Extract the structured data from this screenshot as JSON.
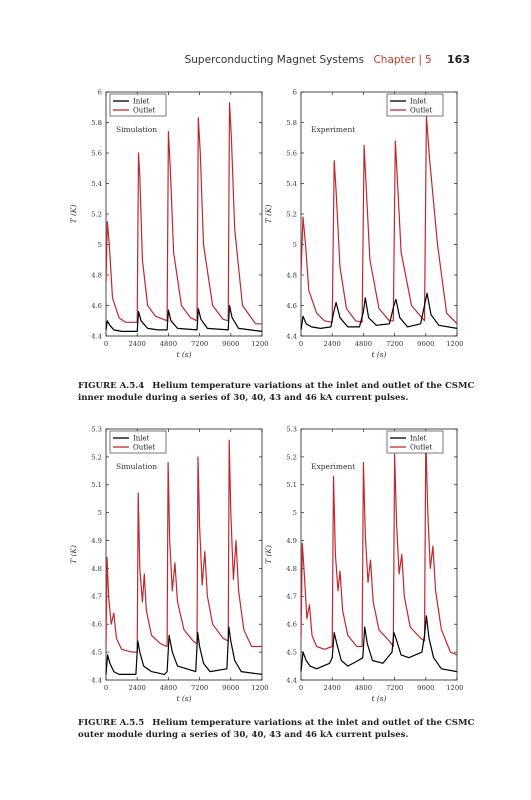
{
  "header": {
    "title": "Superconducting Magnet Systems",
    "chapter": "Chapter",
    "separator": "|",
    "chapter_num": "5",
    "page_num": "163"
  },
  "figures": [
    {
      "label": "FIGURE A.5.4",
      "caption": "Helium temperature variations at the inlet and outlet of the CSMC inner module during a series of 30, 40, 43 and 46 kA current pulses."
    },
    {
      "label": "FIGURE A.5.5",
      "caption": "Helium temperature variations at the inlet and outlet of the CSMC outer module during a series of 30, 40, 43 and 46 kA current pulses."
    }
  ],
  "chart_data": [
    {
      "type": "line",
      "panel_label": "Simulation",
      "xlabel": "t (s)",
      "ylabel": "T (K)",
      "xlim": [
        0,
        12000
      ],
      "ylim": [
        4.4,
        6
      ],
      "xticks": [
        "0",
        "2400",
        "4800",
        "7200",
        "9600",
        "12000"
      ],
      "yticks": [
        "4.4",
        "4.6",
        "4.8",
        "5",
        "5.2",
        "5.4",
        "5.6",
        "5.8",
        "6"
      ],
      "legend": "top-left",
      "colors": {
        "Inlet": "#000000",
        "Outlet": "#c0282d"
      },
      "series": [
        {
          "name": "Outlet",
          "x": [
            0,
            100,
            250,
            500,
            1000,
            1500,
            2400,
            2500,
            2600,
            2800,
            3200,
            3800,
            4400,
            4700,
            4800,
            4950,
            5200,
            5800,
            6500,
            7000,
            7100,
            7250,
            7500,
            8200,
            9000,
            9400,
            9500,
            9650,
            9900,
            10500,
            11500,
            12000
          ],
          "y": [
            4.75,
            5.15,
            5.0,
            4.65,
            4.52,
            4.49,
            4.49,
            5.6,
            5.45,
            4.9,
            4.6,
            4.53,
            4.51,
            4.5,
            5.74,
            5.5,
            4.95,
            4.6,
            4.52,
            4.5,
            5.83,
            5.6,
            5.0,
            4.6,
            4.51,
            4.5,
            5.93,
            5.7,
            5.1,
            4.6,
            4.48,
            4.48
          ]
        },
        {
          "name": "Inlet",
          "x": [
            0,
            100,
            300,
            600,
            1200,
            2400,
            2500,
            2700,
            3200,
            4000,
            4700,
            4800,
            5000,
            5500,
            7000,
            7100,
            7300,
            7800,
            9400,
            9500,
            9700,
            10200,
            12000
          ],
          "y": [
            4.44,
            4.5,
            4.47,
            4.44,
            4.43,
            4.43,
            4.56,
            4.5,
            4.45,
            4.44,
            4.44,
            4.57,
            4.5,
            4.45,
            4.44,
            4.58,
            4.51,
            4.45,
            4.44,
            4.6,
            4.52,
            4.45,
            4.43
          ]
        }
      ]
    },
    {
      "type": "line",
      "panel_label": "Experiment",
      "xlabel": "t (s)",
      "ylabel": "T (K)",
      "xlim": [
        0,
        12000
      ],
      "ylim": [
        4.4,
        6
      ],
      "xticks": [
        "0",
        "2400",
        "4800",
        "7200",
        "9600",
        "12000"
      ],
      "yticks": [
        "4.4",
        "4.6",
        "4.8",
        "5",
        "5.2",
        "5.4",
        "5.6",
        "5.8",
        "6"
      ],
      "legend": "top-right",
      "colors": {
        "Inlet": "#000000",
        "Outlet": "#c0282d"
      },
      "series": [
        {
          "name": "Outlet",
          "x": [
            0,
            150,
            350,
            600,
            1200,
            1800,
            2400,
            2550,
            2700,
            3000,
            3500,
            4200,
            4700,
            4850,
            5000,
            5300,
            6000,
            6800,
            7100,
            7250,
            7400,
            7700,
            8500,
            9300,
            9500,
            9650,
            9900,
            10500,
            11200,
            12000
          ],
          "y": [
            4.8,
            5.18,
            5.0,
            4.7,
            4.55,
            4.5,
            4.49,
            5.55,
            5.35,
            4.85,
            4.58,
            4.5,
            4.49,
            5.65,
            5.4,
            4.9,
            4.58,
            4.5,
            4.5,
            5.68,
            5.45,
            4.95,
            4.6,
            4.52,
            4.5,
            5.84,
            5.55,
            5.0,
            4.55,
            4.48
          ]
        },
        {
          "name": "Inlet",
          "x": [
            0,
            150,
            400,
            800,
            1500,
            2300,
            2500,
            2700,
            3000,
            3600,
            4500,
            4800,
            4950,
            5200,
            5800,
            6800,
            7150,
            7300,
            7600,
            8200,
            9200,
            9550,
            9700,
            10000,
            10600,
            12000
          ],
          "y": [
            4.44,
            4.53,
            4.48,
            4.46,
            4.45,
            4.46,
            4.55,
            4.62,
            4.52,
            4.46,
            4.46,
            4.56,
            4.65,
            4.52,
            4.47,
            4.48,
            4.6,
            4.64,
            4.52,
            4.46,
            4.48,
            4.62,
            4.68,
            4.54,
            4.47,
            4.45
          ]
        }
      ]
    },
    {
      "type": "line",
      "panel_label": "Simulation",
      "xlabel": "t (s)",
      "ylabel": "T (K)",
      "xlim": [
        0,
        12000
      ],
      "ylim": [
        4.4,
        5.3
      ],
      "xticks": [
        "0",
        "2400",
        "4800",
        "7200",
        "9600",
        "12000"
      ],
      "yticks": [
        "4.4",
        "4.5",
        "4.6",
        "4.7",
        "4.8",
        "4.9",
        "5",
        "5.1",
        "5.2",
        "5.3"
      ],
      "legend": "top-left",
      "colors": {
        "Inlet": "#000000",
        "Outlet": "#c0282d"
      },
      "series": [
        {
          "name": "Outlet",
          "x": [
            0,
            80,
            200,
            400,
            600,
            800,
            1200,
            2000,
            2400,
            2480,
            2600,
            2800,
            2950,
            3100,
            3500,
            4200,
            4700,
            4780,
            4900,
            5100,
            5300,
            5500,
            6000,
            6700,
            7000,
            7080,
            7200,
            7400,
            7600,
            7800,
            8200,
            9000,
            9400,
            9480,
            9600,
            9800,
            10000,
            10200,
            10600,
            11200,
            12000
          ],
          "y": [
            4.52,
            4.84,
            4.7,
            4.6,
            4.64,
            4.55,
            4.51,
            4.5,
            4.5,
            5.07,
            4.8,
            4.68,
            4.78,
            4.65,
            4.56,
            4.53,
            4.52,
            5.18,
            4.9,
            4.72,
            4.82,
            4.68,
            4.58,
            4.54,
            4.53,
            5.2,
            4.95,
            4.74,
            4.86,
            4.7,
            4.6,
            4.55,
            4.54,
            5.26,
            5.0,
            4.76,
            4.9,
            4.72,
            4.58,
            4.52,
            4.52
          ]
        },
        {
          "name": "Inlet",
          "x": [
            0,
            120,
            300,
            600,
            1000,
            2300,
            2450,
            2600,
            2900,
            3500,
            4500,
            4700,
            4850,
            5100,
            5500,
            6900,
            7050,
            7200,
            7500,
            8000,
            9300,
            9450,
            9600,
            9900,
            10400,
            12000
          ],
          "y": [
            4.42,
            4.49,
            4.46,
            4.43,
            4.42,
            4.42,
            4.54,
            4.5,
            4.45,
            4.43,
            4.42,
            4.43,
            4.56,
            4.5,
            4.45,
            4.43,
            4.57,
            4.52,
            4.46,
            4.43,
            4.44,
            4.59,
            4.54,
            4.47,
            4.43,
            4.42
          ]
        }
      ]
    },
    {
      "type": "line",
      "panel_label": "Experiment",
      "xlabel": "t (s)",
      "ylabel": "T (K)",
      "xlim": [
        0,
        12000
      ],
      "ylim": [
        4.4,
        5.3
      ],
      "xticks": [
        "0",
        "2400",
        "4800",
        "7200",
        "9600",
        "12000"
      ],
      "yticks": [
        "4.4",
        "4.5",
        "4.6",
        "4.7",
        "4.8",
        "4.9",
        "5",
        "5.1",
        "5.2",
        "5.3"
      ],
      "legend": "top-right",
      "colors": {
        "Inlet": "#000000",
        "Outlet": "#c0282d"
      },
      "series": [
        {
          "name": "Outlet",
          "x": [
            0,
            100,
            250,
            450,
            650,
            850,
            1200,
            1800,
            2400,
            2500,
            2650,
            2850,
            3000,
            3200,
            3600,
            4300,
            4700,
            4800,
            4950,
            5150,
            5350,
            5550,
            6000,
            6800,
            7100,
            7200,
            7350,
            7550,
            7750,
            7950,
            8400,
            9200,
            9500,
            9600,
            9750,
            9950,
            10150,
            10350,
            10800,
            11500,
            12000
          ],
          "y": [
            4.55,
            4.89,
            4.78,
            4.62,
            4.67,
            4.56,
            4.52,
            4.51,
            4.52,
            5.13,
            4.85,
            4.72,
            4.79,
            4.65,
            4.56,
            4.52,
            4.52,
            5.18,
            4.92,
            4.75,
            4.83,
            4.68,
            4.58,
            4.54,
            4.52,
            5.21,
            4.96,
            4.78,
            4.85,
            4.7,
            4.59,
            4.55,
            4.54,
            5.27,
            5.0,
            4.8,
            4.88,
            4.72,
            4.58,
            4.5,
            4.49
          ]
        },
        {
          "name": "Inlet",
          "x": [
            0,
            150,
            400,
            700,
            1200,
            2200,
            2400,
            2550,
            2750,
            3100,
            3600,
            4400,
            4750,
            4900,
            5100,
            5500,
            6300,
            7000,
            7150,
            7300,
            7700,
            8300,
            9300,
            9500,
            9650,
            9850,
            10200,
            10800,
            12000
          ],
          "y": [
            4.43,
            4.5,
            4.47,
            4.45,
            4.44,
            4.46,
            4.48,
            4.57,
            4.53,
            4.47,
            4.45,
            4.47,
            4.48,
            4.59,
            4.53,
            4.47,
            4.46,
            4.5,
            4.57,
            4.55,
            4.49,
            4.48,
            4.5,
            4.56,
            4.63,
            4.55,
            4.48,
            4.44,
            4.43
          ]
        }
      ]
    }
  ]
}
